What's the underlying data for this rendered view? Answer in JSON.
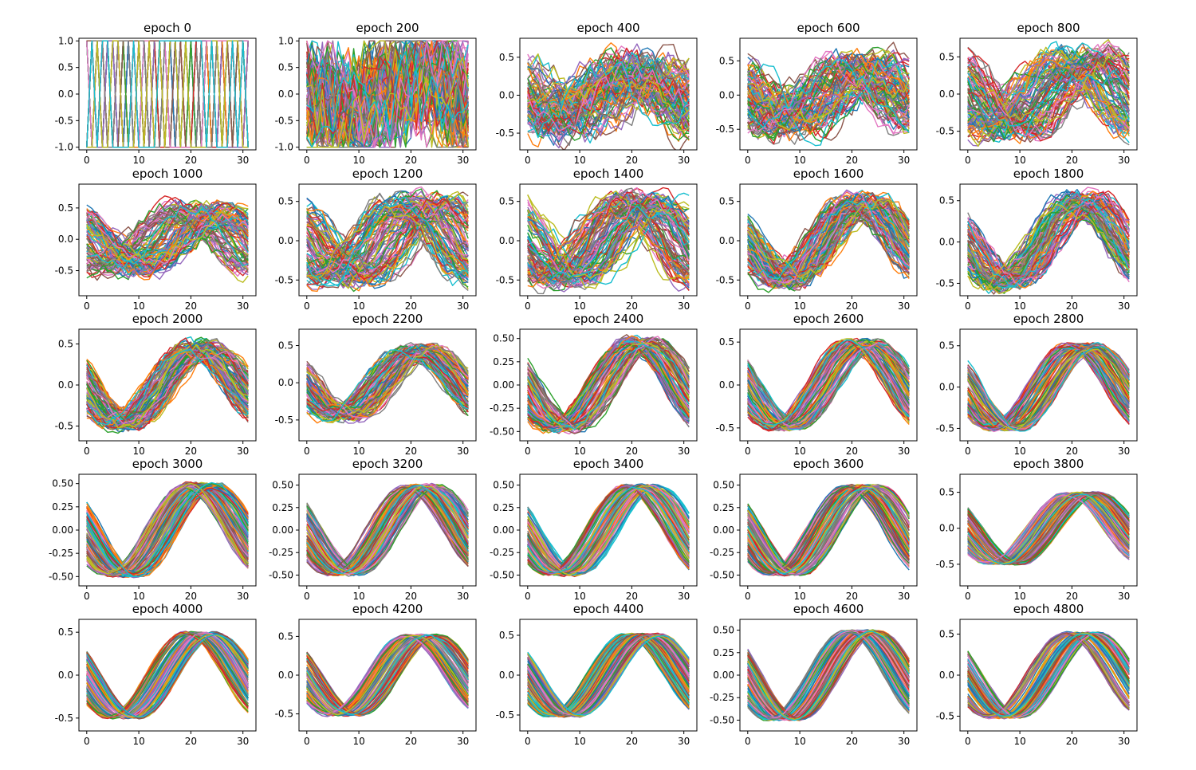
{
  "chart_data": {
    "type": "line",
    "title": "",
    "description_note": "5x5 grid of line plots; each panel overlays many 32-point curves",
    "series_count_per_panel": 100,
    "points_per_series": 32,
    "x": [
      0,
      1,
      2,
      3,
      4,
      5,
      6,
      7,
      8,
      9,
      10,
      11,
      12,
      13,
      14,
      15,
      16,
      17,
      18,
      19,
      20,
      21,
      22,
      23,
      24,
      25,
      26,
      27,
      28,
      29,
      30,
      31
    ],
    "palette": [
      "#1f77b4",
      "#ff7f0e",
      "#2ca02c",
      "#d62728",
      "#9467bd",
      "#8c564b",
      "#e377c2",
      "#7f7f7f",
      "#bcbd22",
      "#17becf"
    ],
    "xlim": [
      -1.5,
      32.5
    ],
    "xticks": [
      0,
      10,
      20,
      30
    ],
    "panels": [
      {
        "title": "epoch 0",
        "epoch": 0,
        "ylim": [
          -1.05,
          1.05
        ],
        "yticks": [
          "-1.0",
          "-0.5",
          "0.0",
          "0.5",
          "1.0"
        ],
        "ytick_values": [
          -1.0,
          -0.5,
          0.0,
          0.5,
          1.0
        ],
        "amplitude": 1.0,
        "noise": 1.0
      },
      {
        "title": "epoch 200",
        "epoch": 200,
        "ylim": [
          -1.05,
          1.05
        ],
        "yticks": [
          "-1.0",
          "-0.5",
          "0.0",
          "0.5",
          "1.0"
        ],
        "ytick_values": [
          -1.0,
          -0.5,
          0.0,
          0.5,
          1.0
        ],
        "amplitude": 0.95,
        "noise": 0.9
      },
      {
        "title": "epoch 400",
        "epoch": 400,
        "ylim": [
          -0.72,
          0.75
        ],
        "yticks": [
          "-0.5",
          "0.0",
          "0.5"
        ],
        "ytick_values": [
          -0.5,
          0.0,
          0.5
        ],
        "amplitude": 0.5,
        "noise": 0.75
      },
      {
        "title": "epoch 600",
        "epoch": 600,
        "ylim": [
          -0.8,
          0.83
        ],
        "yticks": [
          "-0.5",
          "0.0",
          "0.5"
        ],
        "ytick_values": [
          -0.5,
          0.0,
          0.5
        ],
        "amplitude": 0.55,
        "noise": 0.6
      },
      {
        "title": "epoch 800",
        "epoch": 800,
        "ylim": [
          -0.75,
          0.75
        ],
        "yticks": [
          "-0.5",
          "0.0",
          "0.5"
        ],
        "ytick_values": [
          -0.5,
          0.0,
          0.5
        ],
        "amplitude": 0.58,
        "noise": 0.45
      },
      {
        "title": "epoch 1000",
        "epoch": 1000,
        "ylim": [
          -0.9,
          0.88
        ],
        "yticks": [
          "-0.5",
          "0.0",
          "0.5"
        ],
        "ytick_values": [
          -0.5,
          0.0,
          0.5
        ],
        "amplitude": 0.56,
        "noise": 0.4
      },
      {
        "title": "epoch 1200",
        "epoch": 1200,
        "ylim": [
          -0.7,
          0.72
        ],
        "yticks": [
          "-0.5",
          "0.0",
          "0.5"
        ],
        "ytick_values": [
          -0.5,
          0.0,
          0.5
        ],
        "amplitude": 0.56,
        "noise": 0.35
      },
      {
        "title": "epoch 1400",
        "epoch": 1400,
        "ylim": [
          -0.7,
          0.72
        ],
        "yticks": [
          "-0.5",
          "0.0",
          "0.5"
        ],
        "ytick_values": [
          -0.5,
          0.0,
          0.5
        ],
        "amplitude": 0.58,
        "noise": 0.33
      },
      {
        "title": "epoch 1600",
        "epoch": 1600,
        "ylim": [
          -0.7,
          0.72
        ],
        "yticks": [
          "-0.5",
          "0.0",
          "0.5"
        ],
        "ytick_values": [
          -0.5,
          0.0,
          0.5
        ],
        "amplitude": 0.58,
        "noise": 0.3
      },
      {
        "title": "epoch 1800",
        "epoch": 1800,
        "ylim": [
          -0.65,
          0.7
        ],
        "yticks": [
          "-0.5",
          "0.0",
          "0.5"
        ],
        "ytick_values": [
          -0.5,
          0.0,
          0.5
        ],
        "amplitude": 0.57,
        "noise": 0.28
      },
      {
        "title": "epoch 2000",
        "epoch": 2000,
        "ylim": [
          -0.68,
          0.68
        ],
        "yticks": [
          "-0.5",
          "0.0",
          "0.5"
        ],
        "ytick_values": [
          -0.5,
          0.0,
          0.5
        ],
        "amplitude": 0.52,
        "noise": 0.25
      },
      {
        "title": "epoch 2200",
        "epoch": 2200,
        "ylim": [
          -0.78,
          0.72
        ],
        "yticks": [
          "-0.5",
          "0.0",
          "0.5"
        ],
        "ytick_values": [
          -0.5,
          0.0,
          0.5
        ],
        "amplitude": 0.5,
        "noise": 0.22
      },
      {
        "title": "epoch 2400",
        "epoch": 2400,
        "ylim": [
          -0.6,
          0.6
        ],
        "yticks": [
          "-0.50",
          "-0.25",
          "0.00",
          "0.25",
          "0.50"
        ],
        "ytick_values": [
          -0.5,
          -0.25,
          0.0,
          0.25,
          0.5
        ],
        "amplitude": 0.5,
        "noise": 0.15
      },
      {
        "title": "epoch 2600",
        "epoch": 2600,
        "ylim": [
          -0.65,
          0.65
        ],
        "yticks": [
          "-0.5",
          "0.0",
          "0.5"
        ],
        "ytick_values": [
          -0.5,
          0.0,
          0.5
        ],
        "amplitude": 0.52,
        "noise": 0.12
      },
      {
        "title": "epoch 2800",
        "epoch": 2800,
        "ylim": [
          -0.65,
          0.7
        ],
        "yticks": [
          "-0.5",
          "0.0",
          "0.5"
        ],
        "ytick_values": [
          -0.5,
          0.0,
          0.5
        ],
        "amplitude": 0.52,
        "noise": 0.1
      },
      {
        "title": "epoch 3000",
        "epoch": 3000,
        "ylim": [
          -0.6,
          0.6
        ],
        "yticks": [
          "-0.50",
          "-0.25",
          "0.00",
          "0.25",
          "0.50"
        ],
        "ytick_values": [
          -0.5,
          -0.25,
          0.0,
          0.25,
          0.5
        ],
        "amplitude": 0.5,
        "noise": 0.08
      },
      {
        "title": "epoch 3200",
        "epoch": 3200,
        "ylim": [
          -0.62,
          0.62
        ],
        "yticks": [
          "-0.50",
          "-0.25",
          "0.00",
          "0.25",
          "0.50"
        ],
        "ytick_values": [
          -0.5,
          -0.25,
          0.0,
          0.25,
          0.5
        ],
        "amplitude": 0.5,
        "noise": 0.07
      },
      {
        "title": "epoch 3400",
        "epoch": 3400,
        "ylim": [
          -0.62,
          0.62
        ],
        "yticks": [
          "-0.50",
          "-0.25",
          "0.00",
          "0.25",
          "0.50"
        ],
        "ytick_values": [
          -0.5,
          -0.25,
          0.0,
          0.25,
          0.5
        ],
        "amplitude": 0.5,
        "noise": 0.06
      },
      {
        "title": "epoch 3600",
        "epoch": 3600,
        "ylim": [
          -0.62,
          0.62
        ],
        "yticks": [
          "-0.50",
          "-0.25",
          "0.00",
          "0.25",
          "0.50"
        ],
        "ytick_values": [
          -0.5,
          -0.25,
          0.0,
          0.25,
          0.5
        ],
        "amplitude": 0.5,
        "noise": 0.06
      },
      {
        "title": "epoch 3800",
        "epoch": 3800,
        "ylim": [
          -0.8,
          0.75
        ],
        "yticks": [
          "-0.5",
          "0.0",
          "0.5"
        ],
        "ytick_values": [
          -0.5,
          0.0,
          0.5
        ],
        "amplitude": 0.5,
        "noise": 0.05
      },
      {
        "title": "epoch 4000",
        "epoch": 4000,
        "ylim": [
          -0.65,
          0.65
        ],
        "yticks": [
          "-0.5",
          "0.0",
          "0.5"
        ],
        "ytick_values": [
          -0.5,
          0.0,
          0.5
        ],
        "amplitude": 0.5,
        "noise": 0.05
      },
      {
        "title": "epoch 4200",
        "epoch": 4200,
        "ylim": [
          -0.72,
          0.72
        ],
        "yticks": [
          "-0.5",
          "0.0",
          "0.5"
        ],
        "ytick_values": [
          -0.5,
          0.0,
          0.5
        ],
        "amplitude": 0.52,
        "noise": 0.05
      },
      {
        "title": "epoch 4400",
        "epoch": 4400,
        "ylim": [
          -0.7,
          0.7
        ],
        "yticks": [
          "-0.5",
          "0.0",
          "0.5"
        ],
        "ytick_values": [
          -0.5,
          0.0,
          0.5
        ],
        "amplitude": 0.52,
        "noise": 0.04
      },
      {
        "title": "epoch 4600",
        "epoch": 4600,
        "ylim": [
          -0.62,
          0.62
        ],
        "yticks": [
          "-0.50",
          "-0.25",
          "0.00",
          "0.25",
          "0.50"
        ],
        "ytick_values": [
          -0.5,
          -0.25,
          0.0,
          0.25,
          0.5
        ],
        "amplitude": 0.5,
        "noise": 0.04
      },
      {
        "title": "epoch 4800",
        "epoch": 4800,
        "ylim": [
          -0.68,
          0.68
        ],
        "yticks": [
          "-0.5",
          "0.0",
          "0.5"
        ],
        "ytick_values": [
          -0.5,
          0.0,
          0.5
        ],
        "amplitude": 0.52,
        "noise": 0.04
      }
    ]
  }
}
